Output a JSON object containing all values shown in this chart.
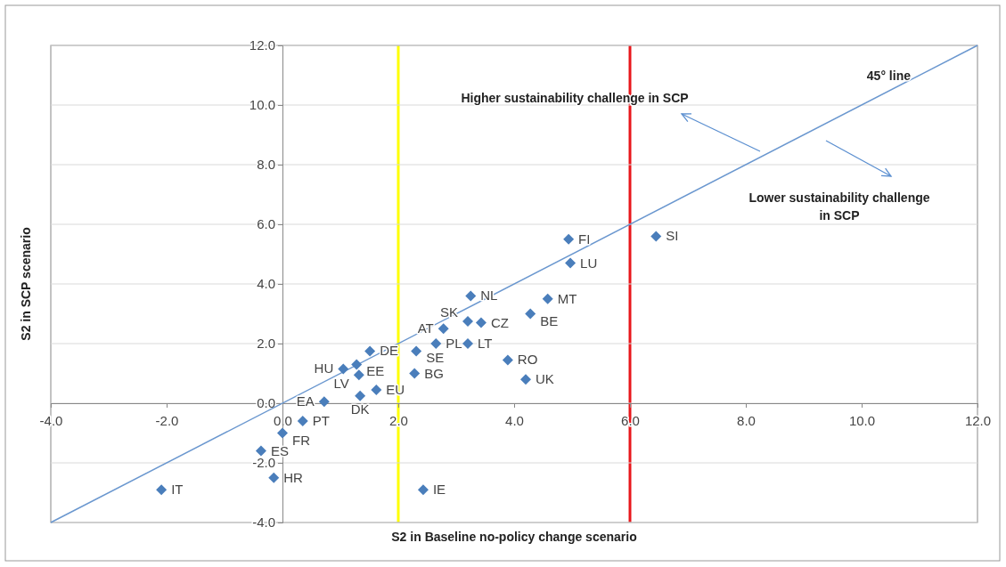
{
  "chart_data": {
    "type": "scatter",
    "xlabel": "S2 in Baseline no-policy change scenario",
    "ylabel": "S2 in SCP scenario",
    "xlim": [
      -4,
      12
    ],
    "ylim": [
      -4,
      12
    ],
    "xticks": [
      {
        "value": -4,
        "label": "-4.0"
      },
      {
        "value": -2,
        "label": "-2.0"
      },
      {
        "value": 0,
        "label": "0.0"
      },
      {
        "value": 2,
        "label": "2.0"
      },
      {
        "value": 4,
        "label": "4.0"
      },
      {
        "value": 6,
        "label": "6.0"
      },
      {
        "value": 8,
        "label": "8.0"
      },
      {
        "value": 10,
        "label": "10.0"
      },
      {
        "value": 12,
        "label": "12.0"
      }
    ],
    "yticks": [
      {
        "value": -4,
        "label": "-4.0"
      },
      {
        "value": -2,
        "label": "-2.0"
      },
      {
        "value": 0,
        "label": "0.0"
      },
      {
        "value": 2,
        "label": "2.0"
      },
      {
        "value": 4,
        "label": "4.0"
      },
      {
        "value": 6,
        "label": "6.0"
      },
      {
        "value": 8,
        "label": "8.0"
      },
      {
        "value": 10,
        "label": "10.0"
      },
      {
        "value": 12,
        "label": "12.0"
      }
    ],
    "grid": "y",
    "series": [
      {
        "type": "scatter",
        "color": "#4a7ebb",
        "marker": "diamond",
        "x": [
          3.25,
          4.58,
          4.28,
          3.2,
          3.43,
          2.78,
          2.65,
          3.2,
          2.31,
          1.51,
          3.89,
          4.2,
          2.28,
          1.28,
          1.05,
          1.32,
          1.62,
          1.34,
          0.72,
          0.35,
          0,
          -0.37,
          -0.15,
          2.43,
          -2.09,
          4.94,
          4.97,
          6.45
        ],
        "values": [
          3.6,
          3.5,
          3.0,
          2.75,
          2.7,
          2.5,
          2.0,
          2.0,
          1.75,
          1.75,
          1.45,
          0.8,
          1.0,
          1.3,
          1.15,
          0.95,
          0.45,
          0.25,
          0.05,
          -0.6,
          -1.0,
          -1.6,
          -2.5,
          -2.9,
          -2.9,
          5.5,
          4.7,
          5.6
        ]
      },
      {
        "type": "line",
        "marker": "none",
        "color": "#6a97cf",
        "x": [
          -4,
          12
        ],
        "values": [
          -4,
          12
        ]
      }
    ],
    "ref_lines": [
      {
        "axis": "x",
        "value": 2,
        "color": "#ffff00"
      },
      {
        "axis": "x",
        "value": 6,
        "color": "#e8161b"
      }
    ],
    "annotations": [
      {
        "text": "NL",
        "x": 3.25,
        "y": 3.6
      },
      {
        "text": "MT",
        "x": 4.58,
        "y": 3.5
      },
      {
        "text": "BE",
        "x": 4.28,
        "y": 3.0
      },
      {
        "text": "SK",
        "x": 3.2,
        "y": 2.75
      },
      {
        "text": "CZ",
        "x": 3.43,
        "y": 2.7
      },
      {
        "text": "AT",
        "x": 2.78,
        "y": 2.5
      },
      {
        "text": "PL",
        "x": 2.65,
        "y": 2.0
      },
      {
        "text": "LT",
        "x": 3.2,
        "y": 2.0
      },
      {
        "text": "SE",
        "x": 2.31,
        "y": 1.75
      },
      {
        "text": "DE",
        "x": 1.51,
        "y": 1.75
      },
      {
        "text": "RO",
        "x": 3.89,
        "y": 1.45
      },
      {
        "text": "UK",
        "x": 4.2,
        "y": 0.8
      },
      {
        "text": "BG",
        "x": 2.28,
        "y": 1.0
      },
      {
        "text": "EE",
        "x": 1.28,
        "y": 1.3
      },
      {
        "text": "HU",
        "x": 1.05,
        "y": 1.15
      },
      {
        "text": "LV",
        "x": 1.32,
        "y": 0.95
      },
      {
        "text": "EU",
        "x": 1.62,
        "y": 0.45
      },
      {
        "text": "DK",
        "x": 1.34,
        "y": 0.25
      },
      {
        "text": "EA",
        "x": 0.72,
        "y": 0.05
      },
      {
        "text": "PT",
        "x": 0.35,
        "y": -0.6
      },
      {
        "text": "FR",
        "x": 0,
        "y": -1.0
      },
      {
        "text": "ES",
        "x": -0.37,
        "y": -1.6
      },
      {
        "text": "HR",
        "x": -0.15,
        "y": -2.5
      },
      {
        "text": "IE",
        "x": 2.43,
        "y": -2.9
      },
      {
        "text": "IT",
        "x": -2.09,
        "y": -2.9
      },
      {
        "text": "FI",
        "x": 4.94,
        "y": 5.5
      },
      {
        "text": "LU",
        "x": 4.97,
        "y": 4.7
      },
      {
        "text": "SI",
        "x": 6.45,
        "y": 5.6
      },
      {
        "text": "45° line",
        "x": 11,
        "y": 11
      },
      "Higher sustainability challenge in SCP",
      "Lower sustainability challenge\nin SCP"
    ]
  }
}
